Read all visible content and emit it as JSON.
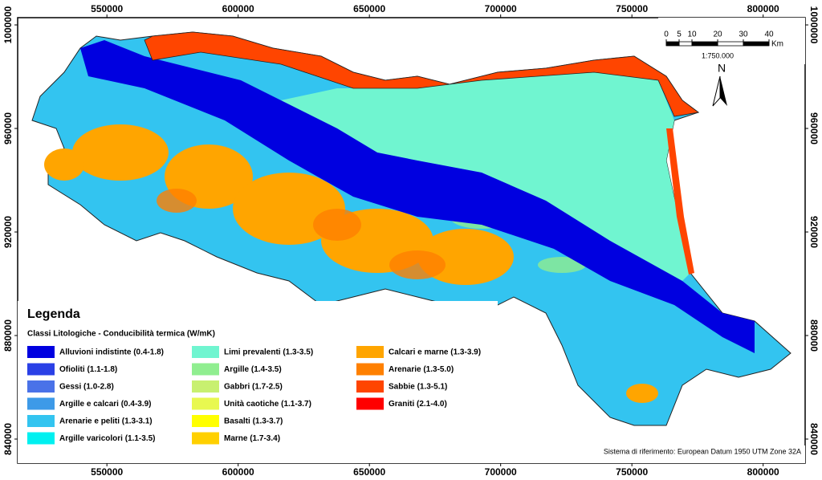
{
  "map": {
    "xlim": [
      516000,
      816000
    ],
    "ylim": [
      830700,
      1002800
    ],
    "xticks": [
      550000,
      600000,
      650000,
      700000,
      750000,
      800000
    ],
    "yticks": [
      840000,
      880000,
      920000,
      960000,
      1000000
    ]
  },
  "legend": {
    "title": "Legenda",
    "subtitle": "Classi Litologiche - Conducibilità termica (W/mK)",
    "items": [
      {
        "label": "Alluvioni indistinte (0.4-1.8)",
        "color": "#0000e0"
      },
      {
        "label": "Ofioliti (1.1-1.8)",
        "color": "#2a40e6"
      },
      {
        "label": "Gessi (1.0-2.8)",
        "color": "#4a72e8"
      },
      {
        "label": "Argille e calcari (0.4-3.9)",
        "color": "#3d9ae8"
      },
      {
        "label": "Arenarie e peliti (1.3-3.1)",
        "color": "#33c4f0"
      },
      {
        "label": "Argille varicolori (1.1-3.5)",
        "color": "#00f0f0"
      },
      {
        "label": "Limi prevalenti (1.3-3.5)",
        "color": "#70f5d0"
      },
      {
        "label": "Argille (1.4-3.5)",
        "color": "#90ee90"
      },
      {
        "label": "Gabbri (1.7-2.5)",
        "color": "#c8f070"
      },
      {
        "label": "Unità caotiche (1.1-3.7)",
        "color": "#e8f850"
      },
      {
        "label": "Basalti (1.3-3.7)",
        "color": "#ffff00"
      },
      {
        "label": "Marne (1.7-3.4)",
        "color": "#ffd000"
      },
      {
        "label": "Calcari e marne (1.3-3.9)",
        "color": "#ffa500"
      },
      {
        "label": "Arenarie (1.3-5.0)",
        "color": "#ff8000"
      },
      {
        "label": "Sabbie (1.3-5.1)",
        "color": "#ff4500"
      },
      {
        "label": "Graniti (2.1-4.0)",
        "color": "#ff0000"
      }
    ]
  },
  "scale_bar": {
    "ticks": [
      0,
      5,
      10,
      20,
      30,
      40
    ],
    "unit": "Km",
    "ratio": "1:750.000"
  },
  "north": "N",
  "reference": "Sistema di riferimento: European Datum 1950 UTM Zone 32A"
}
